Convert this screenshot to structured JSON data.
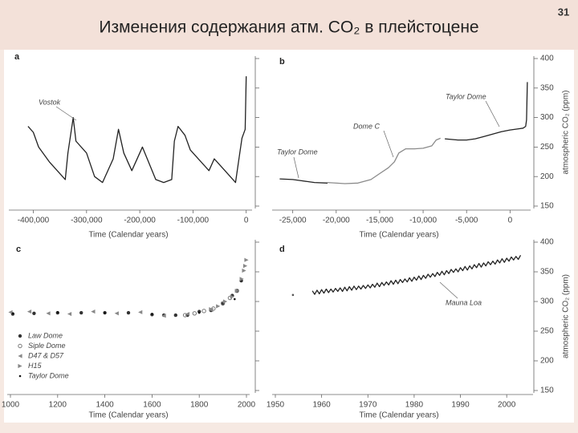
{
  "slide": {
    "title": "Изменения содержания атм. CO₂ в плейстоцене",
    "page_number": "31"
  },
  "chart_data": [
    {
      "type": "line",
      "panel": "a",
      "x_label": "Time (Calendar years)",
      "xlim": [
        -440000,
        5000
      ],
      "ylim": [
        150,
        400
      ],
      "xticks": [
        {
          "value": -400000,
          "label": "-400,000"
        },
        {
          "value": -300000,
          "label": "-300,000"
        },
        {
          "value": -200000,
          "label": "-200,000"
        },
        {
          "value": -100000,
          "label": "-100,000"
        },
        0
      ],
      "yticks": [
        150,
        200,
        250,
        300,
        350,
        400
      ],
      "show_ytick_labels": false,
      "legend": "leader-labels",
      "series": [
        {
          "name": "Vostok",
          "color": "#222222",
          "x": [
            -410000,
            -400000,
            -390000,
            -370000,
            -340000,
            -335000,
            -325000,
            -320000,
            -300000,
            -285000,
            -270000,
            -250000,
            -240000,
            -230000,
            -215000,
            -200000,
            -195000,
            -170000,
            -155000,
            -140000,
            -135000,
            -128000,
            -115000,
            -105000,
            -90000,
            -70000,
            -60000,
            -40000,
            -20000,
            -12000,
            -8000,
            -2000,
            0
          ],
          "values": [
            285,
            275,
            250,
            225,
            195,
            240,
            300,
            260,
            240,
            200,
            190,
            230,
            280,
            240,
            210,
            240,
            250,
            195,
            190,
            195,
            260,
            285,
            270,
            245,
            230,
            210,
            230,
            210,
            190,
            240,
            265,
            280,
            370
          ]
        }
      ]
    },
    {
      "type": "line",
      "panel": "b",
      "x_label": "Time (Calendar years)",
      "y_label": "atmospheric CO₂ (ppm)",
      "xlim": [
        -27000,
        2000
      ],
      "ylim": [
        150,
        400
      ],
      "xticks": [
        {
          "value": -25000,
          "label": "-25,000"
        },
        {
          "value": -20000,
          "label": "-20,000"
        },
        {
          "value": -15000,
          "label": "-15,000"
        },
        {
          "value": -10000,
          "label": "-10,000"
        },
        {
          "value": -5000,
          "label": "-5,000"
        },
        0
      ],
      "yticks": [
        150,
        200,
        250,
        300,
        350,
        400
      ],
      "show_ytick_labels": true,
      "legend": "leader-labels",
      "series": [
        {
          "name": "Taylor Dome",
          "color": "#222222",
          "x": [
            -26500,
            -25000,
            -24000,
            -22500,
            -21000,
            -15000,
            -7500,
            -6000,
            -5000,
            -4000,
            -3000,
            -2000,
            -1000,
            0,
            1000,
            1500,
            1800,
            1900,
            1990
          ],
          "values": [
            196,
            195,
            193,
            190,
            189,
            null,
            264,
            262,
            262,
            264,
            268,
            272,
            276,
            279,
            281,
            282,
            285,
            296,
            360
          ]
        },
        {
          "name": "Dome C",
          "color": "#8a8a8a",
          "x": [
            -21000,
            -19000,
            -17500,
            -16000,
            -15000,
            -14000,
            -13300,
            -12800,
            -12000,
            -11000,
            -10000,
            -9000,
            -8500,
            -8000
          ],
          "values": [
            190,
            188,
            189,
            195,
            205,
            215,
            225,
            240,
            247,
            247,
            248,
            252,
            262,
            265
          ]
        }
      ]
    },
    {
      "type": "scatter",
      "panel": "c",
      "x_label": "Time (Calendar years)",
      "xlim": [
        1000,
        2000
      ],
      "ylim": [
        150,
        400
      ],
      "xticks": [
        1000,
        1200,
        1400,
        1600,
        1800,
        2000
      ],
      "yticks": [
        150,
        200,
        250,
        300,
        350,
        400
      ],
      "show_ytick_labels": false,
      "legend": "lower left",
      "series": [
        {
          "name": "Law Dome",
          "color": "#333333",
          "marker": "circle",
          "x": [
            1010,
            1100,
            1200,
            1300,
            1400,
            1500,
            1600,
            1650,
            1700,
            1750,
            1800,
            1850,
            1900,
            1940,
            1960,
            1978
          ],
          "values": [
            279,
            280,
            281,
            281,
            281,
            281,
            278,
            277,
            277,
            277,
            283,
            285,
            296,
            310,
            318,
            335
          ]
        },
        {
          "name": "Siple Dome",
          "color": "#777777",
          "marker": "open-circle",
          "x": [
            1740,
            1780,
            1820,
            1860,
            1900,
            1930,
            1960
          ],
          "values": [
            277,
            280,
            284,
            288,
            297,
            306,
            318
          ]
        },
        {
          "name": "D47 & D57",
          "color": "#888888",
          "marker": "triangle-left",
          "x": [
            1000,
            1080,
            1160,
            1250,
            1350,
            1450,
            1550,
            1650,
            1750,
            1850
          ],
          "values": [
            282,
            283,
            280,
            279,
            283,
            280,
            282,
            276,
            279,
            286
          ]
        },
        {
          "name": "H15",
          "color": "#888888",
          "marker": "triangle-right",
          "x": [
            1850,
            1880,
            1910,
            1940,
            1960,
            1980,
            1990,
            1995,
            2000
          ],
          "values": [
            287,
            292,
            300,
            308,
            318,
            338,
            352,
            360,
            370
          ]
        },
        {
          "name": "Taylor Dome",
          "color": "#111111",
          "marker": "dot",
          "x": [
            1010,
            1200,
            1400,
            1600,
            1800,
            1950
          ],
          "values": [
            280,
            282,
            281,
            279,
            281,
            304
          ]
        }
      ]
    },
    {
      "type": "line",
      "panel": "d",
      "x_label": "Time (Calendar years)",
      "y_label": "atmospheric CO₂ (ppm)",
      "xlim": [
        1950,
        2005
      ],
      "ylim": [
        150,
        400
      ],
      "xticks": [
        1950,
        1960,
        1970,
        1980,
        1990,
        2000
      ],
      "yticks": [
        150,
        200,
        250,
        300,
        350,
        400
      ],
      "show_ytick_labels": true,
      "legend": "leader-labels",
      "series": [
        {
          "name": "Mauna Loa",
          "color": "#222222",
          "x": [
            1958,
            1958.5,
            1959,
            1959.5,
            1960,
            1960.5,
            1961,
            1961.5,
            1962,
            1962.5,
            1963,
            1963.5,
            1964,
            1964.5,
            1965,
            1965.5,
            1966,
            1966.5,
            1967,
            1967.5,
            1968,
            1968.5,
            1969,
            1969.5,
            1970,
            1970.5,
            1971,
            1971.5,
            1972,
            1972.5,
            1973,
            1973.5,
            1974,
            1974.5,
            1975,
            1975.5,
            1976,
            1976.5,
            1977,
            1977.5,
            1978,
            1978.5,
            1979,
            1979.5,
            1980,
            1980.5,
            1981,
            1981.5,
            1982,
            1982.5,
            1983,
            1983.5,
            1984,
            1984.5,
            1985,
            1985.5,
            1986,
            1986.5,
            1987,
            1987.5,
            1988,
            1988.5,
            1989,
            1989.5,
            1990,
            1990.5,
            1991,
            1991.5,
            1992,
            1992.5,
            1993,
            1993.5,
            1994,
            1994.5,
            1995,
            1995.5,
            1996,
            1996.5,
            1997,
            1997.5,
            1998,
            1998.5,
            1999,
            1999.5,
            2000,
            2000.5,
            2001,
            2001.5,
            2002,
            2002.5,
            2003
          ],
          "values": [
            318,
            312,
            319,
            313,
            320,
            314,
            321,
            315,
            321,
            316,
            322,
            317,
            323,
            317,
            324,
            318,
            325,
            319,
            326,
            320,
            326,
            321,
            327,
            322,
            328,
            323,
            329,
            324,
            331,
            325,
            332,
            327,
            333,
            328,
            335,
            329,
            336,
            330,
            337,
            332,
            338,
            333,
            340,
            334,
            341,
            336,
            343,
            337,
            344,
            339,
            346,
            341,
            347,
            342,
            349,
            344,
            351,
            345,
            352,
            347,
            354,
            349,
            355,
            350,
            357,
            352,
            359,
            353,
            360,
            355,
            362,
            357,
            364,
            358,
            365,
            360,
            367,
            362,
            368,
            363,
            370,
            365,
            372,
            366,
            373,
            368,
            375,
            370,
            376,
            371,
            378
          ]
        },
        {
          "color": "#555555",
          "marker": "dot",
          "x": [
            1953.8
          ],
          "values": [
            311
          ]
        }
      ]
    }
  ]
}
